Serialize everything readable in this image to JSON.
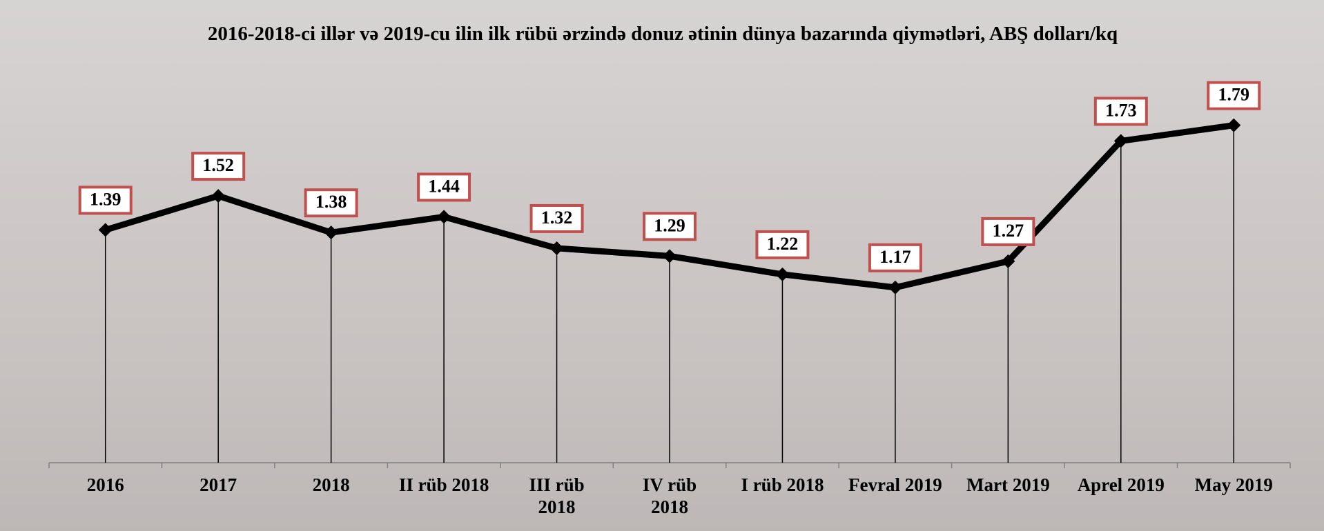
{
  "chart_data": {
    "type": "line",
    "title": "2016-2018-ci illər və 2019-cu ilin ilk rübü ərzində donuz ətinin dünya bazarında qiymətləri, ABŞ dolları/kq",
    "categories": [
      "2016",
      "2017",
      "2018",
      "II rüb 2018",
      "III rüb\n2018",
      "IV rüb\n2018",
      "I rüb 2018",
      "Fevral 2019",
      "Mart 2019",
      "Aprel 2019",
      "May 2019"
    ],
    "values": [
      1.39,
      1.52,
      1.38,
      1.44,
      1.32,
      1.29,
      1.22,
      1.17,
      1.27,
      1.73,
      1.79
    ],
    "color": "#000000",
    "label_border": "#c0504d",
    "ylim": [
      0.5,
      2.0
    ]
  }
}
